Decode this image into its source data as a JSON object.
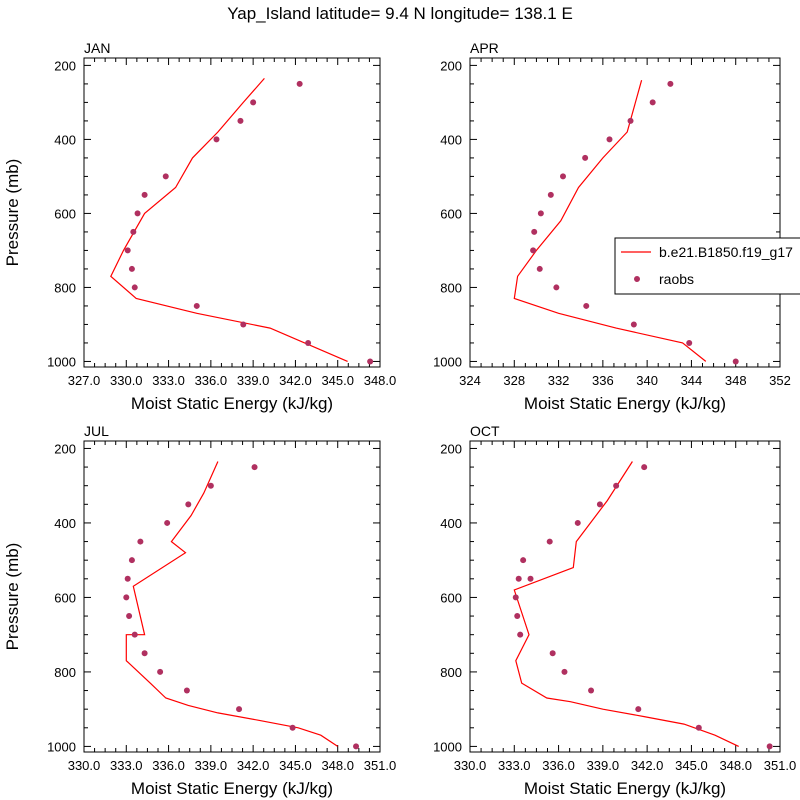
{
  "title": "Yap_Island  latitude= 9.4 N longitude= 138.1 E",
  "colors": {
    "model": "#ff0000",
    "obs": "#b03060",
    "axis": "#000000"
  },
  "legend": {
    "model_label": "b.e21.B1850.f19_g17",
    "obs_label": "raobs",
    "panel": "APR"
  },
  "chart_data": [
    {
      "type": "line",
      "panel": "JAN",
      "xlabel": "Moist Static Energy (kJ/kg)",
      "ylabel": "Pressure (mb)",
      "xlim": [
        327.0,
        348.0
      ],
      "xticks": [
        327.0,
        330.0,
        333.0,
        336.0,
        339.0,
        342.0,
        345.0,
        348.0
      ],
      "xtick_labels": [
        "327.0",
        "330.0",
        "333.0",
        "336.0",
        "339.0",
        "342.0",
        "345.0",
        "348.0"
      ],
      "ylim": [
        1000,
        200
      ],
      "yticks": [
        200,
        400,
        600,
        800,
        1000
      ],
      "ytick_labels": [
        "200",
        "400",
        "600",
        "800",
        "1000"
      ],
      "model": {
        "name": "b.e21.B1850.f19_g17",
        "x": [
          345.7,
          340.2,
          335.0,
          330.7,
          328.9,
          329.8,
          331.3,
          333.5,
          334.7,
          336.5,
          338.3,
          339.8
        ],
        "y": [
          1000,
          910,
          870,
          830,
          770,
          700,
          600,
          530,
          450,
          380,
          300,
          235
        ]
      },
      "raobs": {
        "name": "raobs",
        "x": [
          347.3,
          342.9,
          338.3,
          335.0,
          330.6,
          330.4,
          330.1,
          330.5,
          330.8,
          331.3,
          332.8,
          336.4,
          338.1,
          339.0,
          342.3
        ],
        "y": [
          1000,
          950,
          900,
          850,
          800,
          750,
          700,
          650,
          600,
          550,
          500,
          400,
          350,
          300,
          250
        ]
      }
    },
    {
      "type": "line",
      "panel": "APR",
      "xlabel": "Moist Static Energy (kJ/kg)",
      "ylabel": "",
      "xlim": [
        324,
        352
      ],
      "xticks": [
        324,
        328,
        332,
        336,
        340,
        344,
        348,
        352
      ],
      "xtick_labels": [
        "324",
        "328",
        "332",
        "336",
        "340",
        "344",
        "348",
        "352"
      ],
      "ylim": [
        1000,
        200
      ],
      "yticks": [
        200,
        400,
        600,
        800,
        1000
      ],
      "ytick_labels": [
        "200",
        "400",
        "600",
        "800",
        "1000"
      ],
      "model": {
        "name": "b.e21.B1850.f19_g17",
        "x": [
          345.3,
          343.2,
          337.2,
          332.0,
          328.0,
          328.3,
          330.0,
          332.2,
          333.8,
          336.0,
          338.2,
          339.5
        ],
        "y": [
          1000,
          950,
          910,
          870,
          830,
          770,
          700,
          620,
          530,
          450,
          380,
          240
        ]
      },
      "raobs": {
        "name": "raobs",
        "x": [
          348.0,
          343.8,
          338.8,
          334.5,
          331.8,
          330.3,
          329.7,
          329.8,
          330.4,
          331.3,
          332.4,
          334.4,
          336.6,
          338.5,
          340.5,
          342.1
        ],
        "y": [
          1000,
          950,
          900,
          850,
          800,
          750,
          700,
          650,
          600,
          550,
          500,
          450,
          400,
          350,
          300,
          250
        ]
      }
    },
    {
      "type": "line",
      "panel": "JUL",
      "xlabel": "Moist Static Energy (kJ/kg)",
      "ylabel": "Pressure (mb)",
      "xlim": [
        330.0,
        351.0
      ],
      "xticks": [
        330.0,
        333.0,
        336.0,
        339.0,
        342.0,
        345.0,
        348.0,
        351.0
      ],
      "xtick_labels": [
        "330.0",
        "333.0",
        "336.0",
        "339.0",
        "342.0",
        "345.0",
        "348.0",
        "351.0"
      ],
      "ylim": [
        1000,
        200
      ],
      "yticks": [
        200,
        400,
        600,
        800,
        1000
      ],
      "ytick_labels": [
        "200",
        "400",
        "600",
        "800",
        "1000"
      ],
      "model": {
        "name": "b.e21.B1850.f19_g17",
        "x": [
          348.0,
          346.8,
          345.2,
          342.4,
          339.5,
          337.4,
          335.8,
          334.7,
          333.0,
          333.0,
          334.3,
          333.5,
          337.2,
          336.2,
          337.6,
          338.5,
          339.5
        ],
        "y": [
          1000,
          970,
          950,
          930,
          910,
          890,
          870,
          830,
          770,
          700,
          700,
          570,
          480,
          450,
          380,
          320,
          235
        ]
      },
      "raobs": {
        "name": "raobs",
        "x": [
          349.3,
          344.8,
          341.0,
          337.3,
          335.4,
          334.3,
          333.6,
          333.2,
          333.0,
          333.1,
          333.4,
          334.0,
          335.9,
          337.4,
          339.0,
          342.1
        ],
        "y": [
          1000,
          950,
          900,
          850,
          800,
          750,
          700,
          650,
          600,
          550,
          500,
          450,
          400,
          350,
          300,
          250
        ]
      }
    },
    {
      "type": "line",
      "panel": "OCT",
      "xlabel": "Moist Static Energy (kJ/kg)",
      "ylabel": "",
      "xlim": [
        330.0,
        351.0
      ],
      "xticks": [
        330.0,
        333.0,
        336.0,
        339.0,
        342.0,
        345.0,
        348.0,
        351.0
      ],
      "xtick_labels": [
        "330.0",
        "333.0",
        "336.0",
        "339.0",
        "342.0",
        "345.0",
        "348.0",
        "351.0"
      ],
      "ylim": [
        1000,
        200
      ],
      "yticks": [
        200,
        400,
        600,
        800,
        1000
      ],
      "ytick_labels": [
        "200",
        "400",
        "600",
        "800",
        "1000"
      ],
      "model": {
        "name": "b.e21.B1850.f19_g17",
        "x": [
          348.2,
          346.6,
          344.5,
          341.8,
          339.0,
          336.8,
          335.2,
          333.5,
          333.1,
          334.0,
          333.0,
          337.0,
          337.2,
          339.3,
          341.0
        ],
        "y": [
          1000,
          970,
          940,
          920,
          900,
          880,
          870,
          830,
          770,
          700,
          580,
          520,
          450,
          340,
          235
        ]
      },
      "raobs": {
        "name": "raobs",
        "x": [
          350.3,
          345.5,
          341.4,
          338.2,
          336.4,
          335.6,
          333.4,
          333.2,
          333.1,
          333.3,
          333.6,
          334.1,
          335.4,
          337.3,
          338.8,
          339.9,
          341.8
        ],
        "y": [
          1000,
          950,
          900,
          850,
          800,
          750,
          700,
          650,
          600,
          550,
          500,
          550,
          450,
          400,
          350,
          300,
          250
        ]
      }
    }
  ]
}
